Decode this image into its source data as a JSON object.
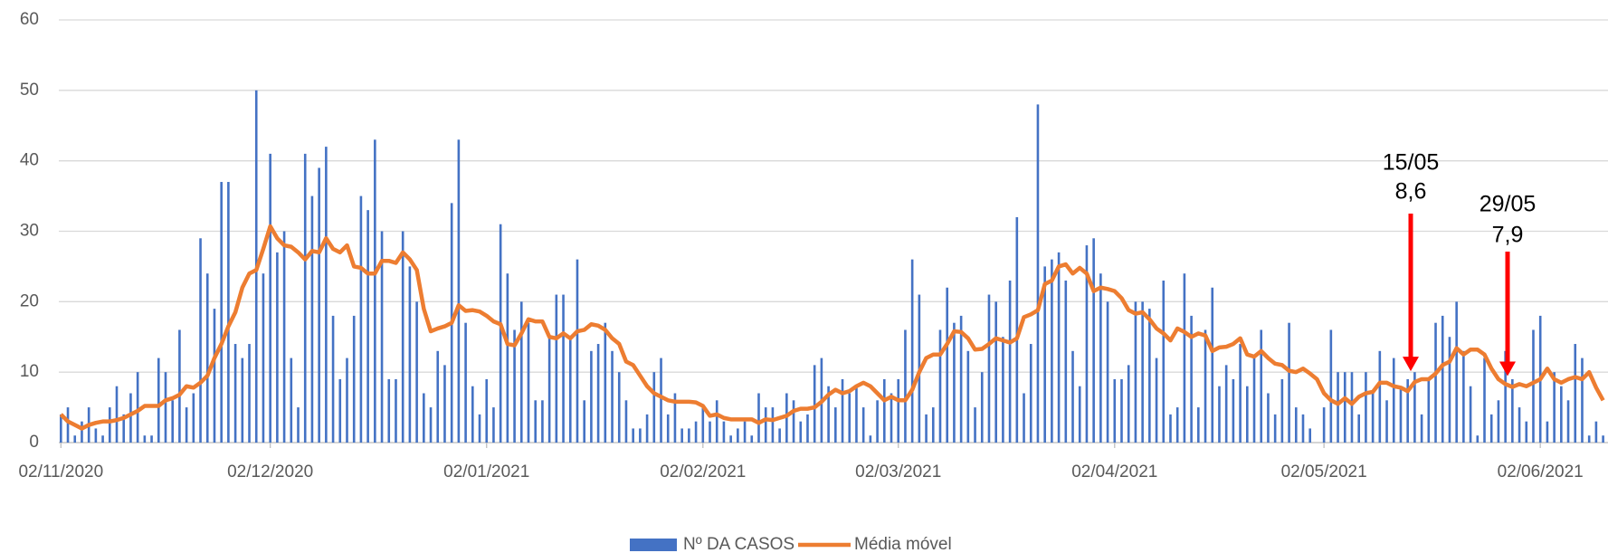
{
  "chart_data": {
    "type": "bar-line",
    "categories": [
      "02/11/2020",
      null,
      null,
      null,
      null,
      null,
      null,
      null,
      null,
      null,
      null,
      null,
      null,
      null,
      null,
      null,
      null,
      null,
      null,
      null,
      null,
      null,
      null,
      null,
      null,
      null,
      null,
      null,
      null,
      null,
      "02/12/2020",
      null,
      null,
      null,
      null,
      null,
      null,
      null,
      null,
      null,
      null,
      null,
      null,
      null,
      null,
      null,
      null,
      null,
      null,
      null,
      null,
      null,
      null,
      null,
      null,
      null,
      null,
      null,
      null,
      null,
      null,
      "02/01/2021",
      null,
      null,
      null,
      null,
      null,
      null,
      null,
      null,
      null,
      null,
      null,
      null,
      null,
      null,
      null,
      null,
      null,
      null,
      null,
      null,
      null,
      null,
      null,
      null,
      null,
      null,
      null,
      null,
      null,
      null,
      "02/02/2021",
      null,
      null,
      null,
      null,
      null,
      null,
      null,
      null,
      null,
      null,
      null,
      null,
      null,
      null,
      null,
      null,
      null,
      null,
      null,
      null,
      null,
      null,
      null,
      null,
      null,
      null,
      null,
      "02/03/2021",
      null,
      null,
      null,
      null,
      null,
      null,
      null,
      null,
      null,
      null,
      null,
      null,
      null,
      null,
      null,
      null,
      null,
      null,
      null,
      null,
      null,
      null,
      null,
      null,
      null,
      null,
      null,
      null,
      null,
      null,
      "02/04/2021",
      null,
      null,
      null,
      null,
      null,
      null,
      null,
      null,
      null,
      null,
      null,
      null,
      null,
      null,
      null,
      null,
      null,
      null,
      null,
      null,
      null,
      null,
      null,
      null,
      null,
      null,
      null,
      null,
      null,
      "02/05/2021",
      null,
      null,
      null,
      null,
      null,
      null,
      null,
      null,
      null,
      null,
      null,
      null,
      null,
      null,
      null,
      null,
      null,
      null,
      null,
      null,
      null,
      null,
      null,
      null,
      null,
      null,
      null,
      null,
      null,
      null,
      "02/06/2021",
      null,
      null,
      null,
      null,
      null,
      null,
      null,
      null,
      null
    ],
    "series": [
      {
        "name": "Nº DA CASOS",
        "type": "bar",
        "color": "#4472c4",
        "values": [
          4,
          5,
          1,
          3,
          5,
          2,
          1,
          5,
          8,
          4,
          7,
          10,
          1,
          1,
          12,
          10,
          6,
          16,
          5,
          7,
          29,
          24,
          19,
          37,
          37,
          14,
          12,
          14,
          50,
          24,
          41,
          27,
          30,
          12,
          5,
          41,
          35,
          39,
          42,
          18,
          9,
          12,
          18,
          35,
          33,
          43,
          30,
          9,
          9,
          30,
          25,
          20,
          7,
          5,
          13,
          11,
          34,
          43,
          17,
          8,
          4,
          9,
          5,
          31,
          24,
          16,
          20,
          17,
          6,
          6,
          15,
          21,
          21,
          15,
          26,
          6,
          13,
          14,
          17,
          13,
          10,
          6,
          2,
          2,
          4,
          10,
          12,
          4,
          7,
          2,
          2,
          3,
          5,
          3,
          6,
          3,
          1,
          2,
          3,
          1,
          7,
          5,
          5,
          2,
          7,
          6,
          3,
          4,
          11,
          12,
          8,
          5,
          9,
          7,
          8,
          5,
          1,
          6,
          9,
          7,
          9,
          16,
          26,
          21,
          4,
          5,
          16,
          22,
          17,
          18,
          13,
          5,
          10,
          21,
          20,
          15,
          23,
          32,
          7,
          14,
          48,
          25,
          26,
          27,
          23,
          13,
          8,
          28,
          29,
          24,
          20,
          9,
          9,
          11,
          20,
          20,
          19,
          12,
          23,
          4,
          5,
          24,
          18,
          5,
          16,
          22,
          8,
          11,
          9,
          14,
          8,
          12,
          16,
          7,
          4,
          9,
          17,
          5,
          4,
          2,
          0,
          5,
          16,
          10,
          10,
          10,
          4,
          10,
          7,
          13,
          6,
          12,
          8,
          9,
          10,
          4,
          9,
          17,
          18,
          15,
          20,
          13,
          8,
          1,
          12,
          4,
          6,
          13,
          9,
          5,
          3,
          16,
          18,
          3,
          10,
          8,
          6,
          14,
          12,
          1,
          3,
          1
        ]
      },
      {
        "name": "Média móvel",
        "type": "line",
        "color": "#ed7d31",
        "values": [
          4,
          3,
          2.5,
          2,
          2.5,
          2.8,
          3,
          3,
          3.2,
          3.5,
          4,
          4.5,
          5.2,
          5.2,
          5.2,
          6,
          6.3,
          6.8,
          8,
          7.8,
          8.5,
          9.5,
          12,
          14,
          16.5,
          18.5,
          22,
          24,
          24.5,
          27.5,
          30.7,
          29,
          28,
          27.8,
          27,
          26,
          27.2,
          27,
          29,
          27.5,
          27,
          28,
          25,
          24.8,
          24,
          24,
          25.8,
          25.8,
          25.5,
          27,
          26,
          24.5,
          19,
          15.8,
          16.2,
          16.5,
          17,
          19.5,
          18.7,
          18.8,
          18.6,
          18,
          17.2,
          16.8,
          14,
          13.8,
          15.5,
          17.5,
          17.2,
          17.2,
          15,
          14.8,
          15.5,
          14.8,
          15.8,
          16,
          16.8,
          16.6,
          16,
          14.8,
          14,
          11.5,
          11,
          9.5,
          8,
          7,
          6.5,
          6,
          5.8,
          5.8,
          5.8,
          5.7,
          5.2,
          3.8,
          4,
          3.5,
          3.3,
          3.3,
          3.3,
          3.3,
          2.8,
          3.3,
          3.2,
          3.5,
          3.8,
          4.5,
          4.8,
          4.8,
          5,
          5.8,
          6.8,
          7.5,
          7,
          7.3,
          8,
          8.5,
          8,
          7,
          6,
          6.5,
          6,
          6,
          7.5,
          10,
          12,
          12.5,
          12.5,
          14,
          15.8,
          15.7,
          14.8,
          13.2,
          13.3,
          14,
          14.8,
          14.5,
          14.2,
          14.8,
          17.8,
          18.2,
          18.8,
          22.5,
          23,
          25,
          25.3,
          24,
          24.8,
          24,
          21.5,
          22,
          21.8,
          21.5,
          20.5,
          18.8,
          18.3,
          18.5,
          17.5,
          16.2,
          15.5,
          14.5,
          16.2,
          15.7,
          15,
          15.5,
          15.2,
          13,
          13.5,
          13.6,
          14,
          14.8,
          12.5,
          12.2,
          13,
          12,
          11.2,
          11,
          10.2,
          10,
          10.5,
          9.8,
          9,
          7,
          6,
          5.5,
          6.3,
          5.5,
          6.5,
          7,
          7.2,
          8.5,
          8.5,
          8,
          7.8,
          7.3,
          8.6,
          9,
          9,
          9.8,
          11,
          11.5,
          13.4,
          12.5,
          13.2,
          13.2,
          12.5,
          10.5,
          9,
          8.3,
          7.9,
          8.3,
          8,
          8.5,
          9,
          10.5,
          9,
          8.5,
          9,
          9.3,
          9,
          10,
          7.8,
          6
        ]
      }
    ],
    "ylim": [
      0,
      60
    ],
    "yticks": [
      0,
      10,
      20,
      30,
      40,
      50,
      60
    ],
    "grid": true,
    "legend": "bottom",
    "annotations": [
      {
        "date": "15/05",
        "value": 8.6,
        "value_label": "8,6",
        "color": "#ff0000"
      },
      {
        "date": "29/05",
        "value": 7.9,
        "value_label": "7,9",
        "color": "#ff0000"
      }
    ]
  }
}
